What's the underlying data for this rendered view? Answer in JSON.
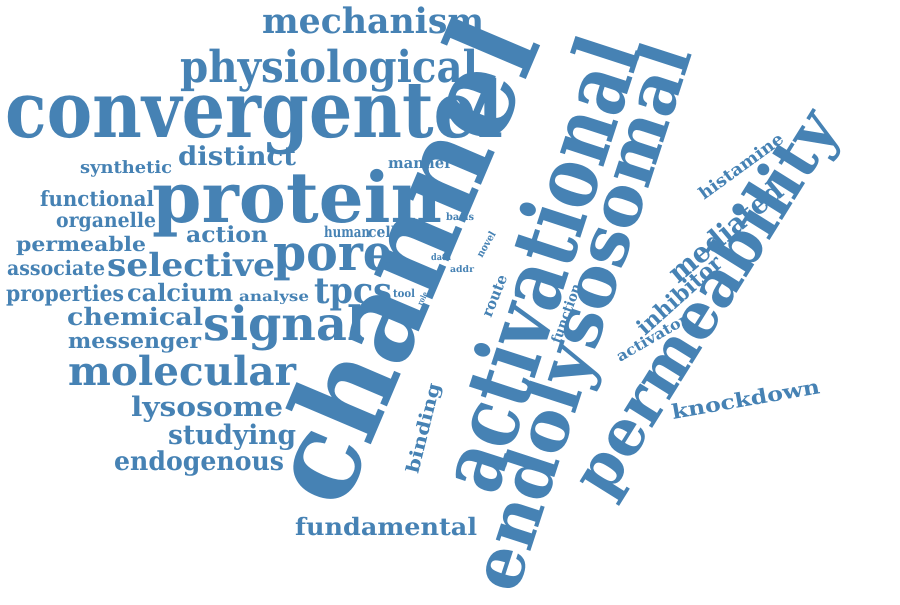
{
  "cloud": {
    "color": "#4682b4",
    "background": "#ffffff",
    "words": {
      "channel": "channel",
      "convergentel": "convergentel",
      "protein": "protein",
      "activational": "activational",
      "endolysosomal": "endolysosomal",
      "permeability": "permeability",
      "physiological": "physiological",
      "mechanism": "mechanism",
      "signal": "signal",
      "pore": "pore",
      "molecular": "molecular",
      "selective": "selective",
      "tpcs": "tpcs",
      "distinct": "distinct",
      "fundamental": "fundamental",
      "lysosome": "lysosome",
      "studying": "studying",
      "endogenous": "endogenous",
      "chemical": "chemical",
      "messenger": "messenger",
      "calcium": "calcium",
      "properties": "properties",
      "associate": "associate",
      "permeable": "permeable",
      "action": "action",
      "organelle": "organelle",
      "functional": "functional",
      "synthetic": "synthetic",
      "human": "human",
      "cell": "cell",
      "manner": "manner",
      "basis": "basis",
      "analyse": "analyse",
      "tool": "tool",
      "role": "role",
      "data": "data",
      "addr": "addr",
      "novel": "novel",
      "route": "route",
      "binding": "binding",
      "function": "function",
      "knockdown": "knockdown",
      "mediated": "mediated",
      "histamine": "histamine",
      "inhibitor": "inhibitor",
      "activator": "activator"
    }
  }
}
